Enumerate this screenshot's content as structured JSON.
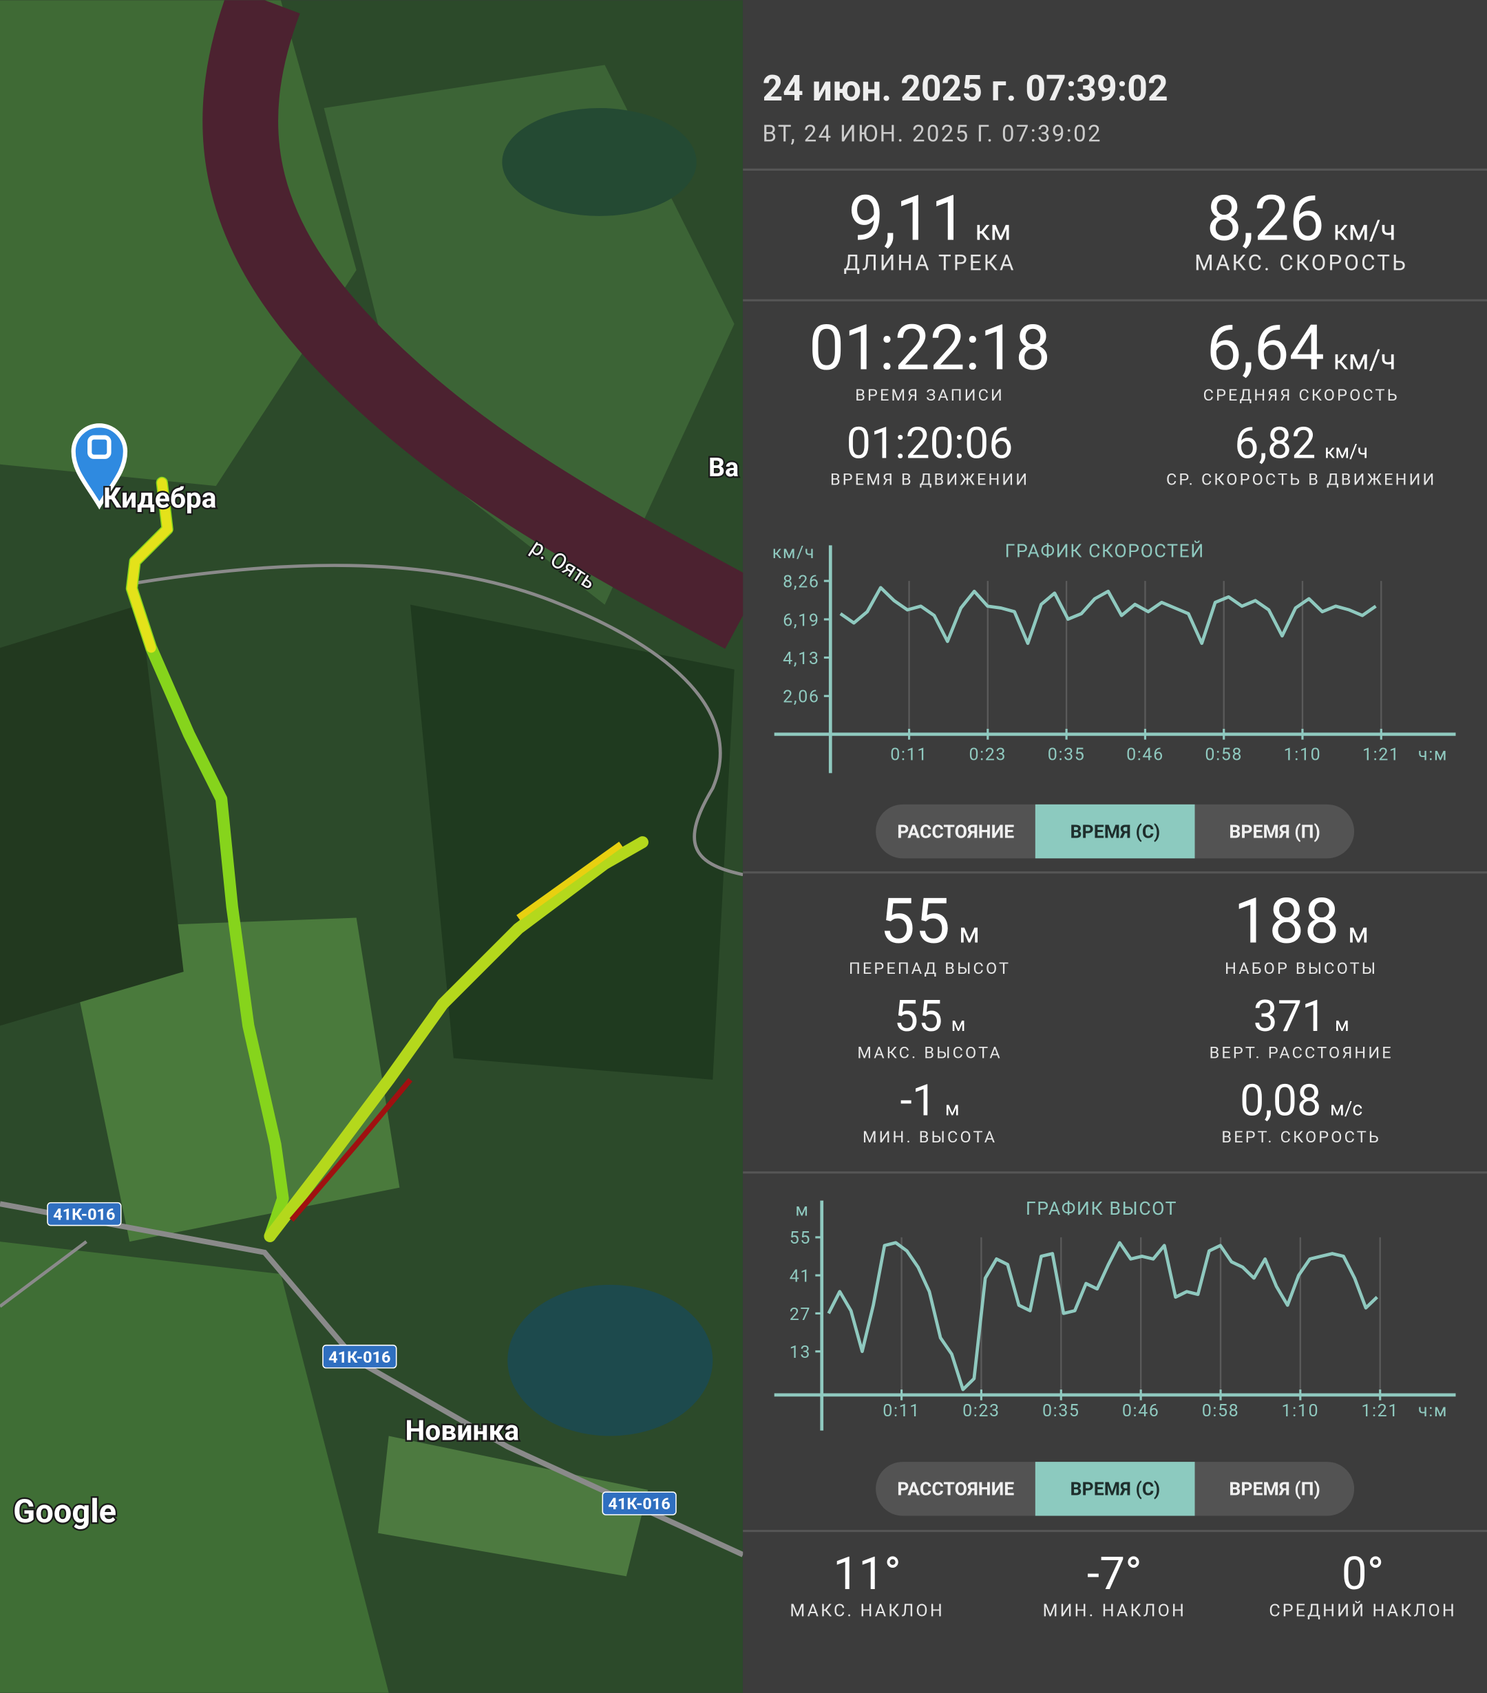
{
  "header": {
    "title": "24 июн. 2025 г. 07:39:02",
    "subtitle": "ВТ, 24 ИЮН. 2025 Г. 07:39:02"
  },
  "track_stats": [
    {
      "value": "9,11",
      "unit": "км",
      "label": "ДЛИНА ТРЕКА"
    },
    {
      "value": "8,26",
      "unit": "км/ч",
      "label": "МАКС. СКОРОСТЬ"
    }
  ],
  "time_stats": [
    {
      "value": "01:22:18",
      "label": "ВРЕМЯ ЗАПИСИ"
    },
    {
      "value": "6,64",
      "unit": "км/ч",
      "label": "СРЕДНЯЯ СКОРОСТЬ"
    },
    {
      "value": "01:20:06",
      "label": "ВРЕМЯ В ДВИЖЕНИИ"
    },
    {
      "value": "6,82",
      "unit": "км/ч",
      "label": "СР. СКОРОСТЬ В ДВИЖЕНИИ"
    }
  ],
  "altitude_stats": [
    {
      "value": "55",
      "unit": "м",
      "label": "ПЕРЕПАД ВЫСОТ"
    },
    {
      "value": "188",
      "unit": "м",
      "label": "НАБОР ВЫСОТЫ"
    },
    {
      "value": "55",
      "unit": "м",
      "label": "МАКС. ВЫСОТА"
    },
    {
      "value": "371",
      "unit": "м",
      "label": "ВЕРТ. РАССТОЯНИЕ"
    },
    {
      "value": "-1",
      "unit": "м",
      "label": "МИН. ВЫСОТА"
    },
    {
      "value": "0,08",
      "unit": "м/с",
      "label": "ВЕРТ. СКОРОСТЬ"
    }
  ],
  "slope_stats": [
    {
      "value": "11°",
      "label": "МАКС. НАКЛОН"
    },
    {
      "value": "-7°",
      "label": "МИН. НАКЛОН"
    },
    {
      "value": "0°",
      "label": "СРЕДНИЙ НАКЛОН"
    }
  ],
  "chart_modes": [
    {
      "options": [
        "РАССТОЯНИЕ",
        "ВРЕМЯ (С)",
        "ВРЕМЯ (П)"
      ],
      "selected": 1
    },
    {
      "options": [
        "РАССТОЯНИЕ",
        "ВРЕМЯ (С)",
        "ВРЕМЯ (П)"
      ],
      "selected": 1
    }
  ],
  "chart_data": [
    {
      "type": "line",
      "title": "ГРАФИК СКОРОСТЕЙ",
      "y_label": "км/ч",
      "x_label": "ч:м",
      "color": "#8fc9bf",
      "grid": true,
      "xlim": [
        0,
        82.3
      ],
      "xticks": [
        {
          "value": 11.76,
          "label": "0:11"
        },
        {
          "value": 23.51,
          "label": "0:23"
        },
        {
          "value": 35.27,
          "label": "0:35"
        },
        {
          "value": 47.03,
          "label": "0:46"
        },
        {
          "value": 58.79,
          "label": "0:58"
        },
        {
          "value": 70.54,
          "label": "1:10"
        },
        {
          "value": 82.3,
          "label": "1:21"
        }
      ],
      "ylim": [
        0,
        8.26
      ],
      "yticks": [
        {
          "value": 2.06,
          "label": "2,06"
        },
        {
          "value": 4.13,
          "label": "4,13"
        },
        {
          "value": 6.19,
          "label": "6,19"
        },
        {
          "value": 8.26,
          "label": "8,26"
        }
      ],
      "x": [
        1.5,
        3.5,
        5.5,
        7.5,
        9.5,
        11.5,
        13.5,
        15.5,
        17.5,
        19.5,
        21.5,
        23.5,
        25.5,
        27.5,
        29.5,
        31.5,
        33.5,
        35.5,
        37.5,
        39.5,
        41.5,
        43.5,
        45.5,
        47.5,
        49.5,
        51.5,
        53.5,
        55.5,
        57.5,
        59.5,
        61.5,
        63.5,
        65.5,
        67.5,
        69.5,
        71.5,
        73.5,
        75.5,
        77.5,
        79.5,
        81.5
      ],
      "values": [
        6.5,
        6.0,
        6.6,
        7.9,
        7.2,
        6.7,
        6.9,
        6.4,
        5.0,
        6.8,
        7.7,
        6.9,
        6.8,
        6.6,
        4.9,
        7.0,
        7.6,
        6.2,
        6.5,
        7.3,
        7.7,
        6.4,
        7.0,
        6.6,
        7.1,
        6.8,
        6.5,
        4.9,
        7.1,
        7.4,
        6.9,
        7.2,
        6.7,
        5.3,
        6.8,
        7.3,
        6.6,
        6.9,
        6.7,
        6.4,
        6.9
      ]
    },
    {
      "type": "line",
      "title": "ГРАФИК ВЫСОТ",
      "y_label": "м",
      "x_label": "ч:м",
      "color": "#8fc9bf",
      "grid": true,
      "xlim": [
        0,
        82.3
      ],
      "xticks": [
        {
          "value": 11.76,
          "label": "0:11"
        },
        {
          "value": 23.51,
          "label": "0:23"
        },
        {
          "value": 35.27,
          "label": "0:35"
        },
        {
          "value": 47.03,
          "label": "0:46"
        },
        {
          "value": 58.79,
          "label": "0:58"
        },
        {
          "value": 70.54,
          "label": "1:10"
        },
        {
          "value": 82.3,
          "label": "1:21"
        }
      ],
      "ylim": [
        -3,
        55
      ],
      "yticks": [
        13,
        27,
        41,
        55
      ],
      "x": [
        1.0,
        2.65,
        4.3,
        5.95,
        7.6,
        9.25,
        10.9,
        12.55,
        14.2,
        15.85,
        17.5,
        19.15,
        20.8,
        22.45,
        24.1,
        25.75,
        27.4,
        29.05,
        30.7,
        32.35,
        34.0,
        35.65,
        37.3,
        38.95,
        40.6,
        42.25,
        43.9,
        45.55,
        47.2,
        48.85,
        50.5,
        52.15,
        53.8,
        55.45,
        57.1,
        58.75,
        60.4,
        62.05,
        63.7,
        65.35,
        67.0,
        68.65,
        70.3,
        71.95,
        73.6,
        75.25,
        76.9,
        78.55,
        80.2,
        81.85
      ],
      "values": [
        27,
        35,
        28,
        13,
        30,
        52,
        53,
        50,
        44,
        35,
        18,
        12,
        -1,
        3,
        40,
        47,
        45,
        30,
        28,
        48,
        49,
        27,
        28,
        38,
        36,
        45,
        53,
        47,
        48,
        47,
        52,
        33,
        35,
        34,
        50,
        52,
        46,
        44,
        40,
        47,
        37,
        30,
        41,
        47,
        48,
        49,
        48,
        40,
        29,
        33
      ]
    }
  ],
  "map": {
    "places": [
      "Кидебра",
      "Ва",
      "Новинка"
    ],
    "river": "р. Оять",
    "roads": [
      "41К-016",
      "41К-016",
      "41К-016"
    ],
    "attribution": "Google"
  }
}
